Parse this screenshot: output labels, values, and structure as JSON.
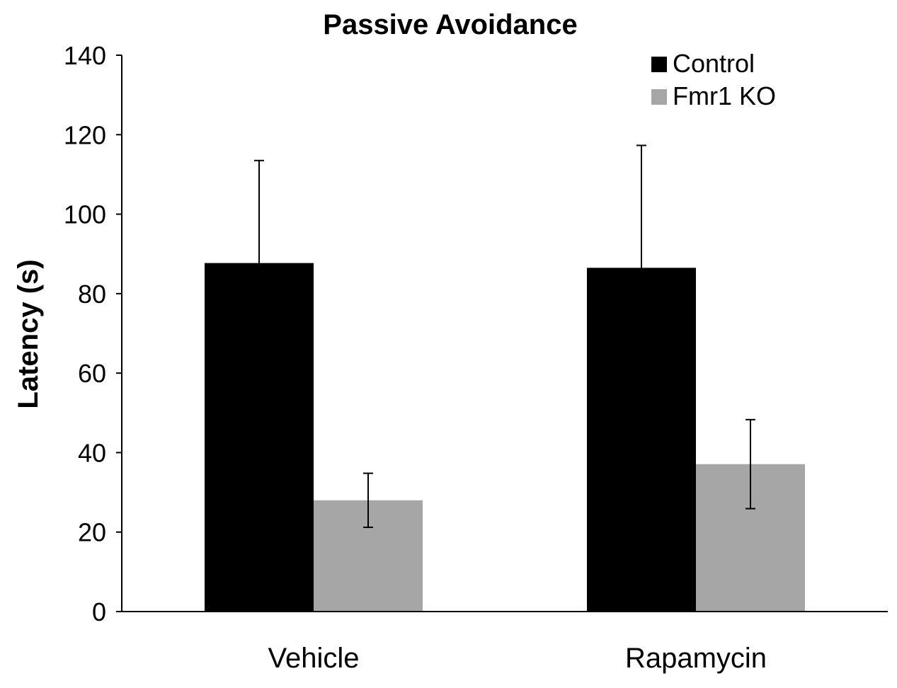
{
  "chart_data": {
    "type": "bar",
    "title": "Passive Avoidance",
    "xlabel": "",
    "ylabel": "Latency (s)",
    "ylim": [
      0,
      140
    ],
    "yticks": [
      "0",
      "20",
      "40",
      "60",
      "80",
      "100",
      "120",
      "140"
    ],
    "ytick_values": [
      0,
      20,
      40,
      60,
      80,
      100,
      120,
      140
    ],
    "categories": [
      "Vehicle",
      "Rapamycin"
    ],
    "series": [
      {
        "name": "Control",
        "color": "#000000",
        "values": [
          87.7,
          86.5
        ],
        "errors": [
          25.8,
          30.8
        ]
      },
      {
        "name": "Fmr1 KO",
        "color": "#a6a6a6",
        "values": [
          28.0,
          37.1
        ],
        "errors": [
          6.8,
          11.2
        ]
      }
    ],
    "legend": {
      "position": "top-right"
    },
    "grid": false
  }
}
